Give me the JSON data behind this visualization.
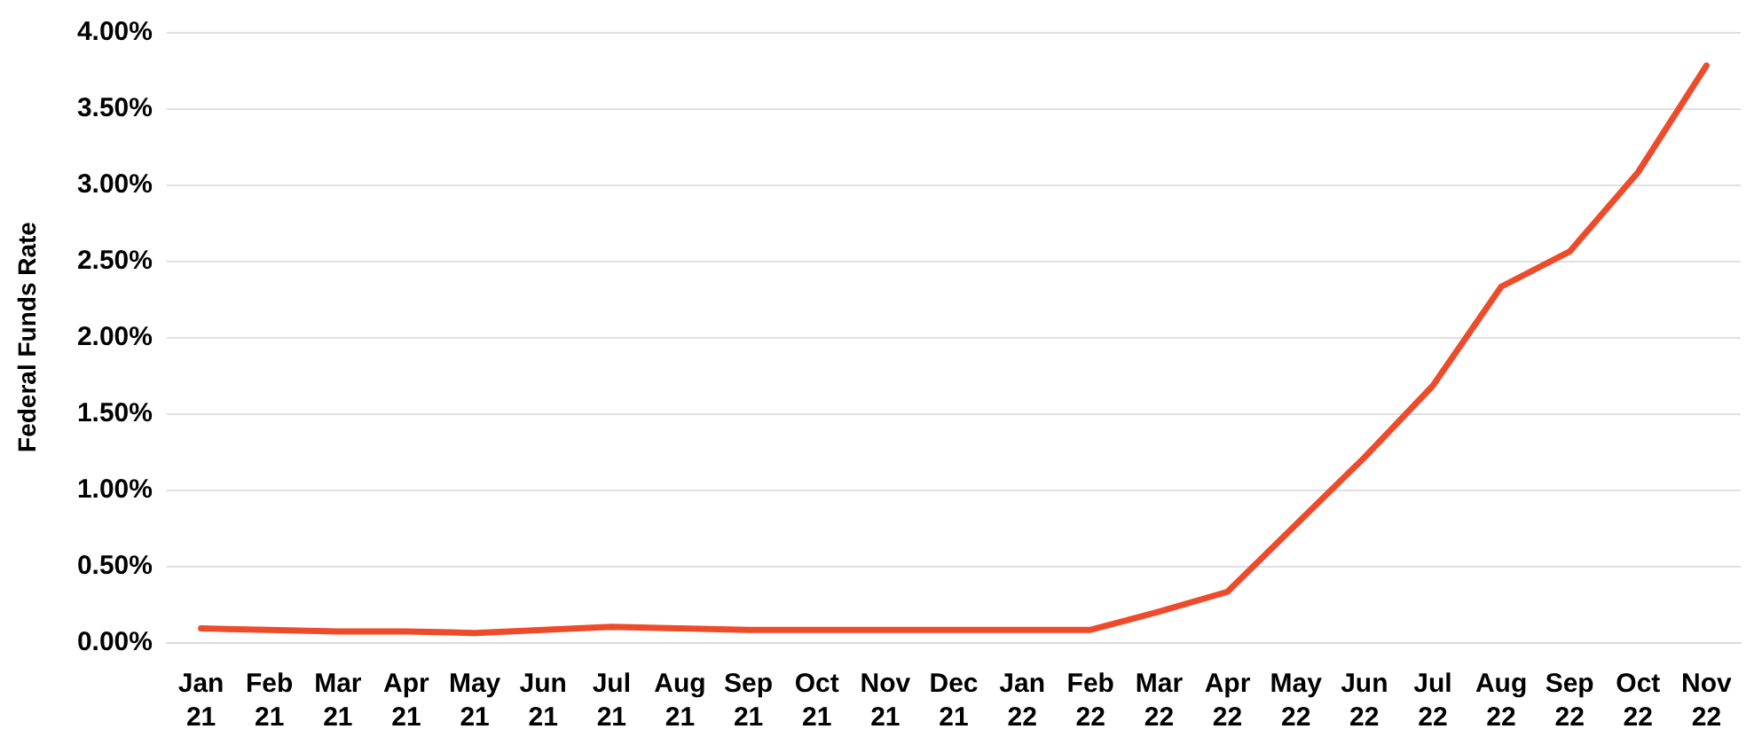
{
  "chart_data": {
    "type": "line",
    "ylabel": "Federal Funds Rate",
    "categories": [
      "Jan\n21",
      "Feb\n21",
      "Mar\n21",
      "Apr\n21",
      "May\n21",
      "Jun\n21",
      "Jul\n21",
      "Aug\n21",
      "Sep\n21",
      "Oct\n21",
      "Nov\n21",
      "Dec\n21",
      "Jan\n22",
      "Feb\n22",
      "Mar\n22",
      "Apr\n22",
      "May\n22",
      "Jun\n22",
      "Jul\n22",
      "Aug\n22",
      "Sep\n22",
      "Oct\n22",
      "Nov\n22"
    ],
    "series": [
      {
        "color": "#ee4b2b",
        "values": [
          0.09,
          0.08,
          0.07,
          0.07,
          0.06,
          0.08,
          0.1,
          0.09,
          0.08,
          0.08,
          0.08,
          0.08,
          0.08,
          0.08,
          0.2,
          0.33,
          0.77,
          1.21,
          1.68,
          2.33,
          2.56,
          3.08,
          3.78
        ]
      }
    ],
    "ylim": [
      0,
      4
    ],
    "yticks": [
      {
        "value": 0,
        "label": "0.00%"
      },
      {
        "value": 0.5,
        "label": "0.50%"
      },
      {
        "value": 1,
        "label": "1.00%"
      },
      {
        "value": 1.5,
        "label": "1.50%"
      },
      {
        "value": 2,
        "label": "2.00%"
      },
      {
        "value": 2.5,
        "label": "2.50%"
      },
      {
        "value": 3,
        "label": "3.00%"
      },
      {
        "value": 3.5,
        "label": "3.50%"
      },
      {
        "value": 4,
        "label": "4.00%"
      }
    ],
    "grid": "y",
    "marker": "none",
    "line_style": "solid"
  }
}
